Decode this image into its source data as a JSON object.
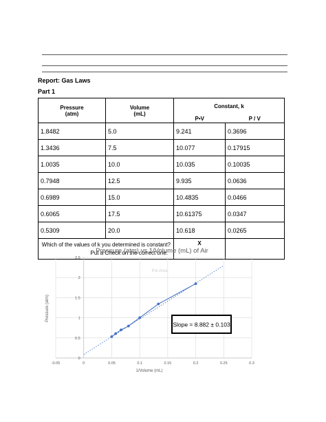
{
  "report_title": "Report: Gas Laws",
  "part_label": "Part 1",
  "table": {
    "pressure_header": [
      "Pressure",
      "(atm)"
    ],
    "volume_header": [
      "Volume",
      "(mL)"
    ],
    "constant_header": "Constant, k",
    "pv_header": "P•V",
    "p_over_v_header": "P / V",
    "rows": [
      [
        "1.8482",
        "5.0",
        "9.241",
        "0.3696"
      ],
      [
        "1.3436",
        "7.5",
        "10.077",
        "0.17915"
      ],
      [
        "1.0035",
        "10.0",
        "10.035",
        "0.10035"
      ],
      [
        "0.7948",
        "12.5",
        "9.935",
        "0.0636"
      ],
      [
        "0.6989",
        "15.0",
        "10.4835",
        "0.0466"
      ],
      [
        "0.6065",
        "17.5",
        "10.61375",
        "0.0347"
      ],
      [
        "0.5309",
        "20.0",
        "10.618",
        "0.0265"
      ]
    ],
    "question_line1": "Which of the values of k you determined is constant?",
    "question_line2": "Put a Check on the correct one.",
    "pv_check": "X",
    "pv_over_check": ""
  },
  "chart_data": {
    "type": "scatter",
    "title": "Pressure (atm) vs 1/Volume (mL) of Air",
    "xlabel": "1/Volume (mL)",
    "ylabel": "Pressure (atm)",
    "xlim": [
      -0.05,
      0.3
    ],
    "ylim": [
      0,
      2.5
    ],
    "x_ticks": [
      "-0.05",
      "0",
      "0.05",
      "0.1",
      "0.15",
      "0.2",
      "0.25",
      "0.3"
    ],
    "y_ticks": [
      "0",
      "0.5",
      "1",
      "1.5",
      "2",
      "2.5"
    ],
    "grid": true,
    "series": [
      {
        "x": [
          0.2,
          0.1333,
          0.1,
          0.08,
          0.0667,
          0.0571,
          0.05
        ],
        "y": [
          1.8482,
          1.3436,
          1.0035,
          0.7948,
          0.6989,
          0.6065,
          0.5309
        ],
        "color": "#4472c4"
      }
    ],
    "trendline": {
      "x": [
        0,
        0.25
      ],
      "y": [
        0.085,
        2.3
      ],
      "style": "dotted"
    },
    "legend_ghost": "Pot Area",
    "annotation": "Slope = 8.882 ± 0.103"
  }
}
